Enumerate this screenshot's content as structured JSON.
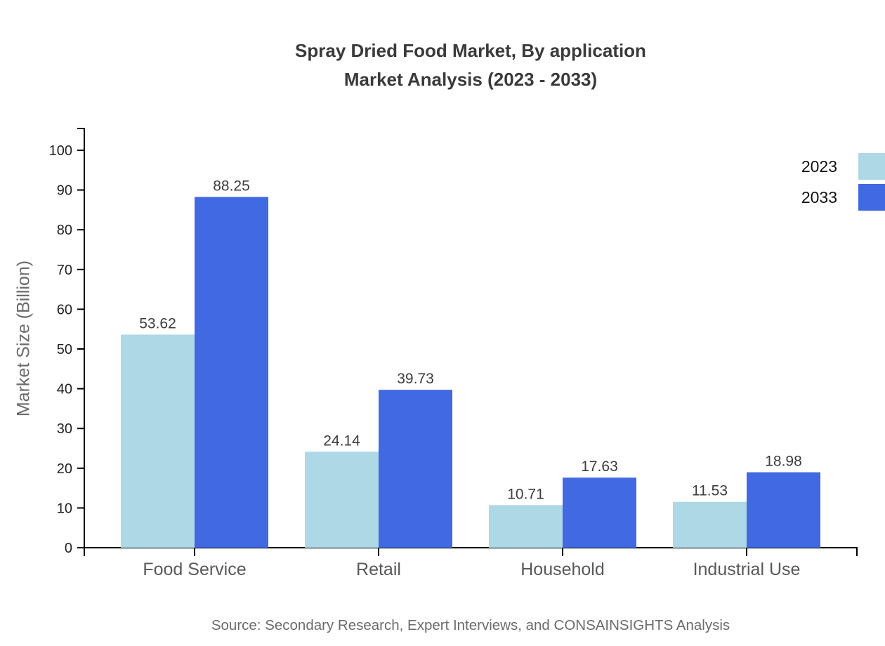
{
  "chart_data": {
    "type": "bar",
    "title_line1": "Spray Dried Food Market, By application",
    "title_line2": "Market Analysis (2023 - 2033)",
    "categories": [
      "Food Service",
      "Retail",
      "Household",
      "Industrial Use"
    ],
    "series": [
      {
        "name": "2023",
        "color": "#ADD8E6",
        "values": [
          53.62,
          24.14,
          10.71,
          11.53
        ]
      },
      {
        "name": "2033",
        "color": "#4169E1",
        "values": [
          88.25,
          39.73,
          17.63,
          18.98
        ]
      }
    ],
    "value_labels": [
      "53.62",
      "88.25",
      "24.14",
      "39.73",
      "10.71",
      "17.63",
      "11.53",
      "18.98"
    ],
    "xlabel": "",
    "ylabel": "Market Size (Billion)",
    "ylim": [
      0,
      105
    ],
    "yticks": [
      0,
      10,
      20,
      30,
      40,
      50,
      60,
      70,
      80,
      90,
      100
    ],
    "grid": false,
    "legend_position": "top-right",
    "axis_color": "#000000",
    "source": "Source: Secondary Research, Expert Interviews, and CONSAINSIGHTS Analysis"
  }
}
